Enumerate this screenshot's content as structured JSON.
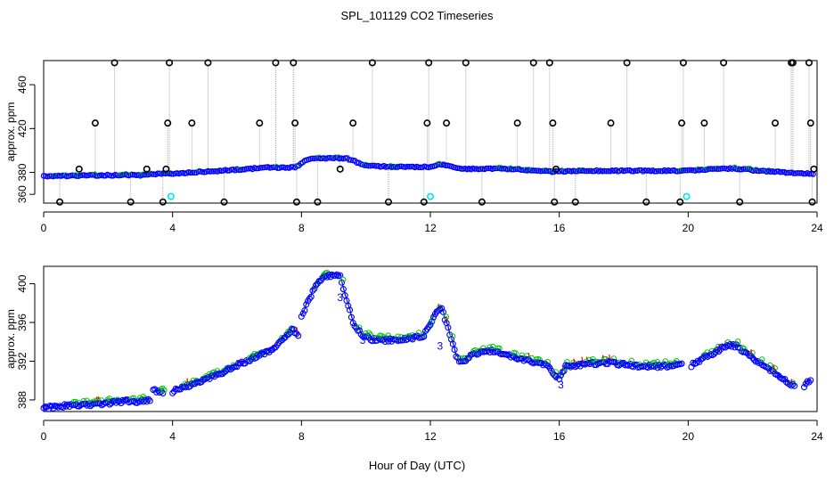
{
  "title": "SPL_101129  CO2 Timeseries",
  "xlabel": "Hour of Day (UTC)",
  "colors": {
    "axis": "#000000",
    "points": "#0000ff",
    "fit": "#00cc00",
    "flag": "#ff0000",
    "outlier": "#000000",
    "filtered": "#00e5ee",
    "connector": "#aaaaaa"
  },
  "chart_data": [
    {
      "type": "scatter",
      "title": "SPL_101129  CO2 Timeseries",
      "xlabel": "",
      "ylabel": "approx. ppm",
      "xlim": [
        0,
        24
      ],
      "ylim": [
        352,
        482
      ],
      "xticks": [
        0,
        4,
        8,
        12,
        16,
        20,
        24
      ],
      "yticks": [
        360,
        380,
        420,
        460
      ],
      "x_tick_labels": [
        "0",
        "4",
        "8",
        "12",
        "16",
        "20",
        "24"
      ],
      "y_tick_labels": [
        "360",
        "380",
        "420",
        "460"
      ],
      "baseline": [
        [
          0.0,
          376.5
        ],
        [
          1.0,
          377
        ],
        [
          2.0,
          377.5
        ],
        [
          3.0,
          377.5
        ],
        [
          3.4,
          378.5
        ],
        [
          4.0,
          379
        ],
        [
          5.0,
          380.5
        ],
        [
          6.0,
          382.5
        ],
        [
          7.0,
          384.5
        ],
        [
          7.8,
          384.5
        ],
        [
          8.2,
          392
        ],
        [
          8.8,
          393
        ],
        [
          9.4,
          393
        ],
        [
          10.0,
          386
        ],
        [
          11.0,
          385
        ],
        [
          12.0,
          385
        ],
        [
          12.3,
          387.5
        ],
        [
          12.7,
          385.5
        ],
        [
          13.0,
          383
        ],
        [
          14.0,
          383.5
        ],
        [
          15.0,
          382
        ],
        [
          15.8,
          380.5
        ],
        [
          16.0,
          381
        ],
        [
          17.0,
          381.5
        ],
        [
          18.0,
          381.5
        ],
        [
          19.0,
          381.5
        ],
        [
          19.8,
          381.5
        ],
        [
          20.3,
          382
        ],
        [
          21.0,
          383.5
        ],
        [
          21.5,
          383.5
        ],
        [
          22.0,
          382
        ],
        [
          22.5,
          381
        ],
        [
          23.0,
          380
        ],
        [
          23.7,
          379
        ]
      ],
      "outliers": [
        [
          0.5,
          353
        ],
        [
          1.1,
          383
        ],
        [
          1.6,
          425
        ],
        [
          2.2,
          480
        ],
        [
          2.7,
          353
        ],
        [
          3.2,
          383
        ],
        [
          3.7,
          353
        ],
        [
          3.8,
          383
        ],
        [
          3.85,
          425
        ],
        [
          3.9,
          480
        ],
        [
          4.6,
          425
        ],
        [
          5.1,
          480
        ],
        [
          5.6,
          353
        ],
        [
          6.7,
          425
        ],
        [
          7.2,
          480
        ],
        [
          7.75,
          480
        ],
        [
          7.8,
          425
        ],
        [
          7.85,
          353
        ],
        [
          8.5,
          353
        ],
        [
          9.2,
          383
        ],
        [
          9.6,
          425
        ],
        [
          10.2,
          480
        ],
        [
          10.7,
          353
        ],
        [
          11.8,
          353
        ],
        [
          11.9,
          425
        ],
        [
          11.95,
          480
        ],
        [
          12.5,
          425
        ],
        [
          13.1,
          480
        ],
        [
          13.6,
          353
        ],
        [
          14.7,
          425
        ],
        [
          15.2,
          480
        ],
        [
          15.7,
          480
        ],
        [
          15.8,
          425
        ],
        [
          15.85,
          353
        ],
        [
          15.9,
          383
        ],
        [
          16.5,
          353
        ],
        [
          17.6,
          425
        ],
        [
          18.1,
          480
        ],
        [
          18.7,
          353
        ],
        [
          19.75,
          353
        ],
        [
          19.8,
          425
        ],
        [
          19.85,
          480
        ],
        [
          20.5,
          425
        ],
        [
          21.1,
          480
        ],
        [
          21.6,
          353
        ],
        [
          22.7,
          425
        ],
        [
          23.2,
          480
        ],
        [
          23.25,
          480
        ],
        [
          23.75,
          480
        ],
        [
          23.8,
          425
        ],
        [
          23.85,
          353
        ],
        [
          23.9,
          383
        ]
      ],
      "filtered": [
        [
          3.95,
          358
        ],
        [
          12.0,
          358
        ],
        [
          19.95,
          358
        ]
      ]
    },
    {
      "type": "scatter",
      "title": "",
      "xlabel": "Hour of Day (UTC)",
      "ylabel": "approx. ppm",
      "xlim": [
        0,
        24
      ],
      "ylim": [
        386.8,
        401.8
      ],
      "xticks": [
        0,
        4,
        8,
        12,
        16,
        20,
        24
      ],
      "yticks": [
        388,
        392,
        396,
        400
      ],
      "x_tick_labels": [
        "0",
        "4",
        "8",
        "12",
        "16",
        "20",
        "24"
      ],
      "y_tick_labels": [
        "388",
        "392",
        "396",
        "400"
      ],
      "series": [
        {
          "name": "obs",
          "segments": [
            [
              [
                0.0,
                387.3
              ],
              [
                0.5,
                387.5
              ],
              [
                1.0,
                387.6
              ],
              [
                1.5,
                387.7
              ],
              [
                2.0,
                387.8
              ],
              [
                2.5,
                388.0
              ],
              [
                3.0,
                388.0
              ],
              [
                3.3,
                388.2
              ]
            ],
            [
              [
                3.4,
                389.2
              ],
              [
                3.7,
                388.9
              ]
            ],
            [
              [
                4.0,
                389.0
              ],
              [
                4.4,
                389.5
              ],
              [
                5.0,
                390.2
              ],
              [
                5.5,
                390.9
              ],
              [
                6.0,
                391.7
              ],
              [
                6.5,
                392.4
              ],
              [
                7.0,
                393.2
              ],
              [
                7.5,
                394.5
              ],
              [
                7.7,
                395.5
              ],
              [
                7.9,
                394.7
              ]
            ],
            [
              [
                8.0,
                396.8
              ],
              [
                8.2,
                398.3
              ],
              [
                8.4,
                399.6
              ],
              [
                8.6,
                400.5
              ],
              [
                8.8,
                401.0
              ],
              [
                9.0,
                401.0
              ],
              [
                9.2,
                400.9
              ],
              [
                9.4,
                398.5
              ],
              [
                9.6,
                396.0
              ],
              [
                9.9,
                394.8
              ],
              [
                10.2,
                394.4
              ],
              [
                10.6,
                394.3
              ],
              [
                11.0,
                394.3
              ],
              [
                11.4,
                394.5
              ],
              [
                11.8,
                394.8
              ],
              [
                12.0,
                396.0
              ],
              [
                12.2,
                397.4
              ],
              [
                12.35,
                397.6
              ],
              [
                12.5,
                396.0
              ],
              [
                12.65,
                394.5
              ],
              [
                12.8,
                392.5
              ],
              [
                13.0,
                392.0
              ],
              [
                13.3,
                392.8
              ],
              [
                13.7,
                393.3
              ],
              [
                14.2,
                393.0
              ],
              [
                14.7,
                392.5
              ],
              [
                15.2,
                392.0
              ],
              [
                15.5,
                391.8
              ],
              [
                15.7,
                391.5
              ],
              [
                15.9,
                390.6
              ]
            ],
            [
              [
                16.0,
                390.2
              ],
              [
                16.2,
                391.6
              ],
              [
                16.6,
                391.7
              ],
              [
                17.0,
                391.9
              ],
              [
                17.5,
                392.0
              ],
              [
                18.0,
                391.8
              ],
              [
                18.5,
                391.6
              ],
              [
                19.0,
                391.6
              ],
              [
                19.5,
                391.7
              ],
              [
                19.8,
                391.8
              ]
            ],
            [
              [
                20.1,
                391.7
              ],
              [
                20.4,
                392.3
              ],
              [
                20.8,
                393.0
              ],
              [
                21.2,
                393.8
              ],
              [
                21.5,
                393.7
              ],
              [
                21.8,
                393.0
              ],
              [
                22.2,
                392.0
              ],
              [
                22.6,
                391.2
              ],
              [
                23.0,
                390.2
              ],
              [
                23.3,
                389.5
              ]
            ],
            [
              [
                23.6,
                389.6
              ],
              [
                23.8,
                390.2
              ]
            ]
          ]
        }
      ],
      "labels": [
        {
          "x": 12.3,
          "y": 393.2,
          "text": "3"
        },
        {
          "x": 15.9,
          "y": 390.0,
          "text": "3"
        },
        {
          "x": 9.2,
          "y": 398.2,
          "text": "3"
        },
        {
          "x": 16.05,
          "y": 389.2,
          "text": "3"
        },
        {
          "x": 9.9,
          "y": 393.8,
          "text": "3"
        }
      ]
    }
  ]
}
